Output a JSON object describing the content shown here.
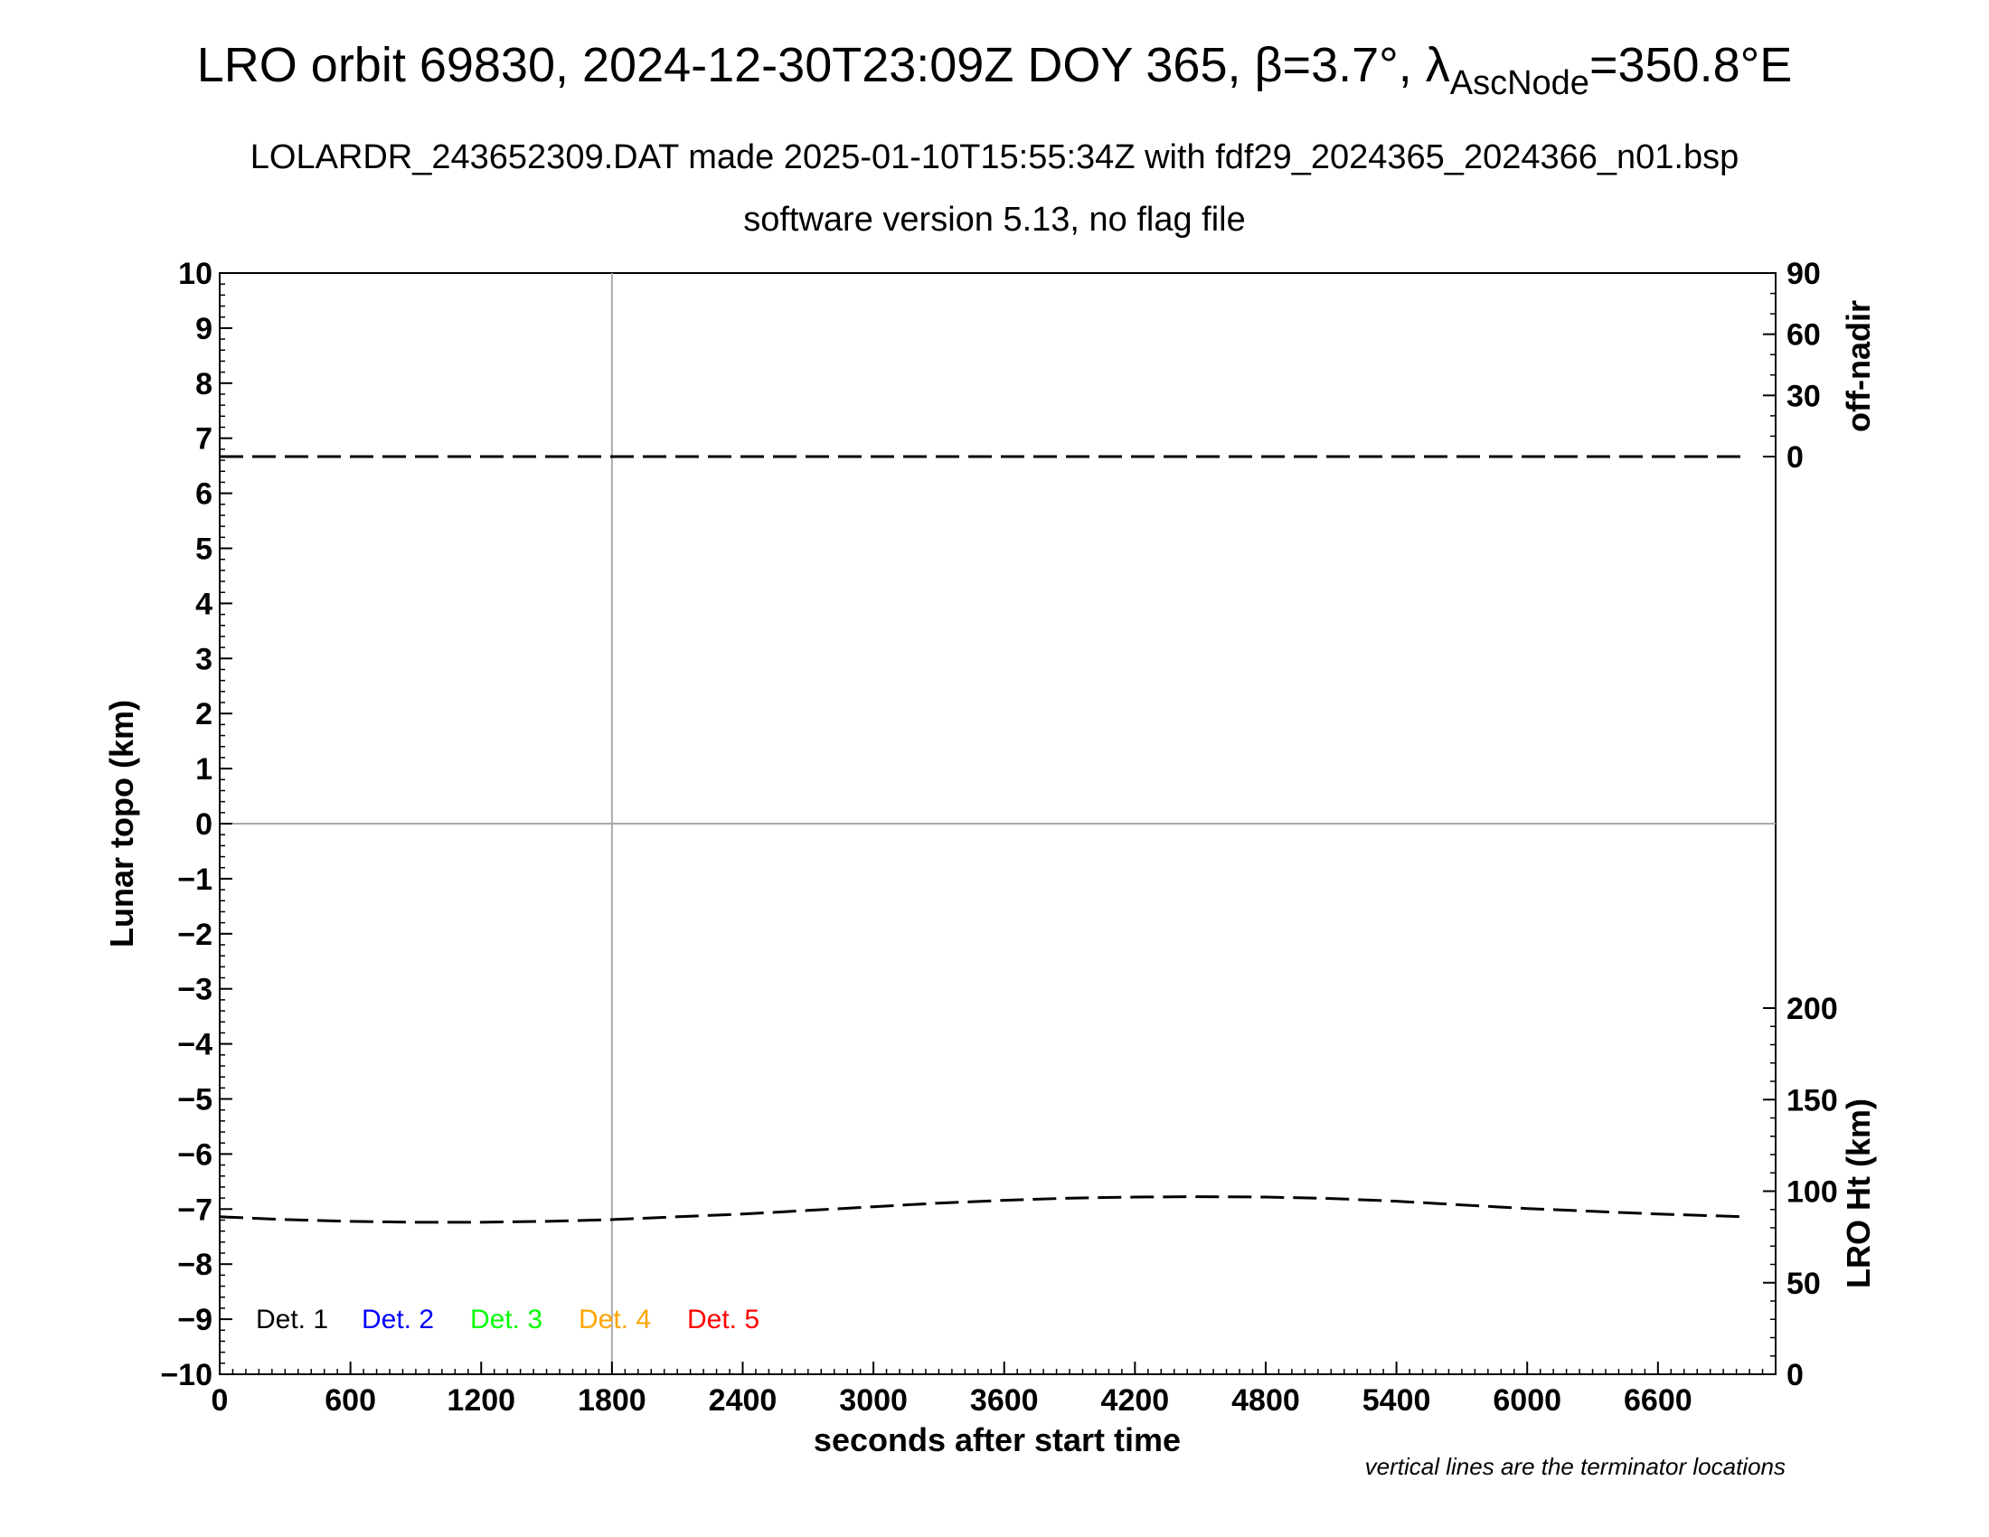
{
  "title_main": "LRO orbit 69830, 2024-12-30T23:09Z DOY 365, β=3.7°, λ",
  "title_sub": "AscNode",
  "title_tail": "=350.8°E",
  "subtitle1": "LOLARDR_243652309.DAT made 2025-01-10T15:55:34Z with fdf29_2024365_2024366_n01.bsp",
  "subtitle2": "software version 5.13, no flag file",
  "note": "vertical lines are the terminator locations",
  "chart_data": {
    "type": "line",
    "xlabel": "seconds after start time",
    "ylabel": "Lunar topo (km)",
    "y2_top_label": "off-nadir",
    "y2_bottom_label": "LRO Ht (km)",
    "xlim": [
      0,
      7140
    ],
    "ylim": [
      -10,
      10
    ],
    "x_ticks": [
      "0",
      "600",
      "1200",
      "1800",
      "2400",
      "3000",
      "3600",
      "4200",
      "4800",
      "5400",
      "6000",
      "6600"
    ],
    "x_tick_values": [
      0,
      600,
      1200,
      1800,
      2400,
      3000,
      3600,
      4200,
      4800,
      5400,
      6000,
      6600
    ],
    "y_ticks": [
      "10",
      "9",
      "8",
      "7",
      "6",
      "5",
      "4",
      "3",
      "2",
      "1",
      "0",
      "−1",
      "−2",
      "−3",
      "−4",
      "−5",
      "−6",
      "−7",
      "−8",
      "−9",
      "−10"
    ],
    "y_tick_values": [
      10,
      9,
      8,
      7,
      6,
      5,
      4,
      3,
      2,
      1,
      0,
      -1,
      -2,
      -3,
      -4,
      -5,
      -6,
      -7,
      -8,
      -9,
      -10
    ],
    "off_nadir_axis": {
      "range_deg": [
        0,
        90
      ],
      "ticks": [
        "90",
        "60",
        "30",
        "0"
      ],
      "tick_values": [
        90,
        60,
        30,
        0
      ]
    },
    "lro_ht_axis": {
      "range_km": [
        0,
        200
      ],
      "ticks": [
        "200",
        "150",
        "100",
        "50",
        "0"
      ],
      "tick_values": [
        200,
        150,
        100,
        50,
        0
      ]
    },
    "terminator_x": [
      1800
    ],
    "zero_line_y": 0,
    "series": [
      {
        "axis": "off-nadir",
        "x": [
          0,
          7000
        ],
        "values": [
          0.0,
          0.0
        ]
      },
      {
        "axis": "LRO Ht (km)",
        "x": [
          0,
          300,
          600,
          900,
          1200,
          1500,
          1800,
          2100,
          2400,
          2700,
          3000,
          3300,
          3600,
          3900,
          4200,
          4500,
          4800,
          5100,
          5400,
          5700,
          6000,
          6300,
          6600,
          7000
        ],
        "values": [
          86,
          84.5,
          83.5,
          83,
          83,
          83.5,
          84.5,
          86,
          87.5,
          89.5,
          91.5,
          93.5,
          95,
          96.2,
          96.8,
          97,
          96.8,
          96,
          94.5,
          92.5,
          90.5,
          89,
          87.5,
          86
        ]
      }
    ],
    "legend": [
      {
        "label": "Det. 1",
        "color": "#000000"
      },
      {
        "label": "Det. 2",
        "color": "#0000ff"
      },
      {
        "label": "Det. 3",
        "color": "#00ff00"
      },
      {
        "label": "Det. 4",
        "color": "#ffa500"
      },
      {
        "label": "Det. 5",
        "color": "#ff0000"
      }
    ],
    "legend_position": "bottom-left"
  }
}
